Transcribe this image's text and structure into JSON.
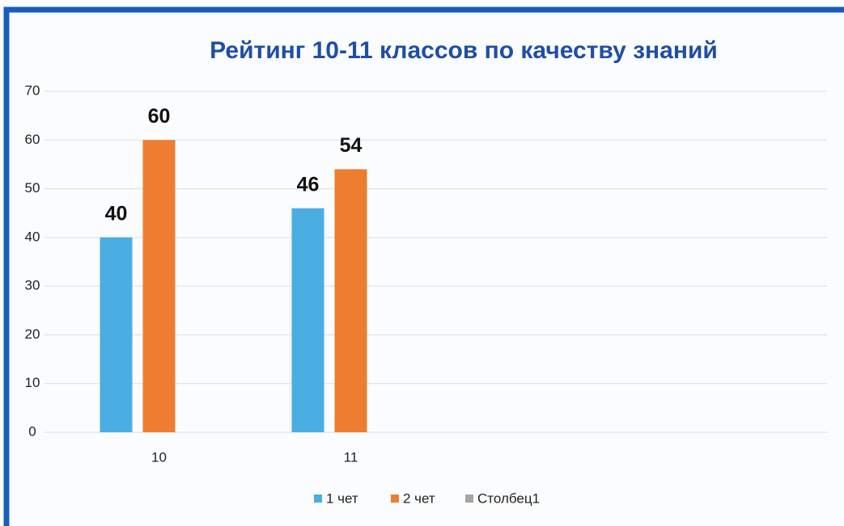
{
  "chart_data": {
    "type": "bar",
    "title": "Рейтинг 10-11 классов по качеству знаний",
    "categories": [
      "10",
      "11",
      null,
      null
    ],
    "series": [
      {
        "name": "1 чет",
        "color": "#4aaee3",
        "values": [
          40,
          46,
          null,
          null
        ]
      },
      {
        "name": "2 чет",
        "color": "#ee7d31",
        "values": [
          60,
          54,
          null,
          null
        ]
      },
      {
        "name": "Столбец1",
        "color": "#a5a5a5",
        "values": [
          null,
          null,
          null,
          null
        ]
      }
    ],
    "ylim": [
      0,
      70
    ],
    "yticks": [
      0,
      10,
      20,
      30,
      40,
      50,
      60,
      70
    ],
    "grid": true,
    "legend": "bottom"
  }
}
